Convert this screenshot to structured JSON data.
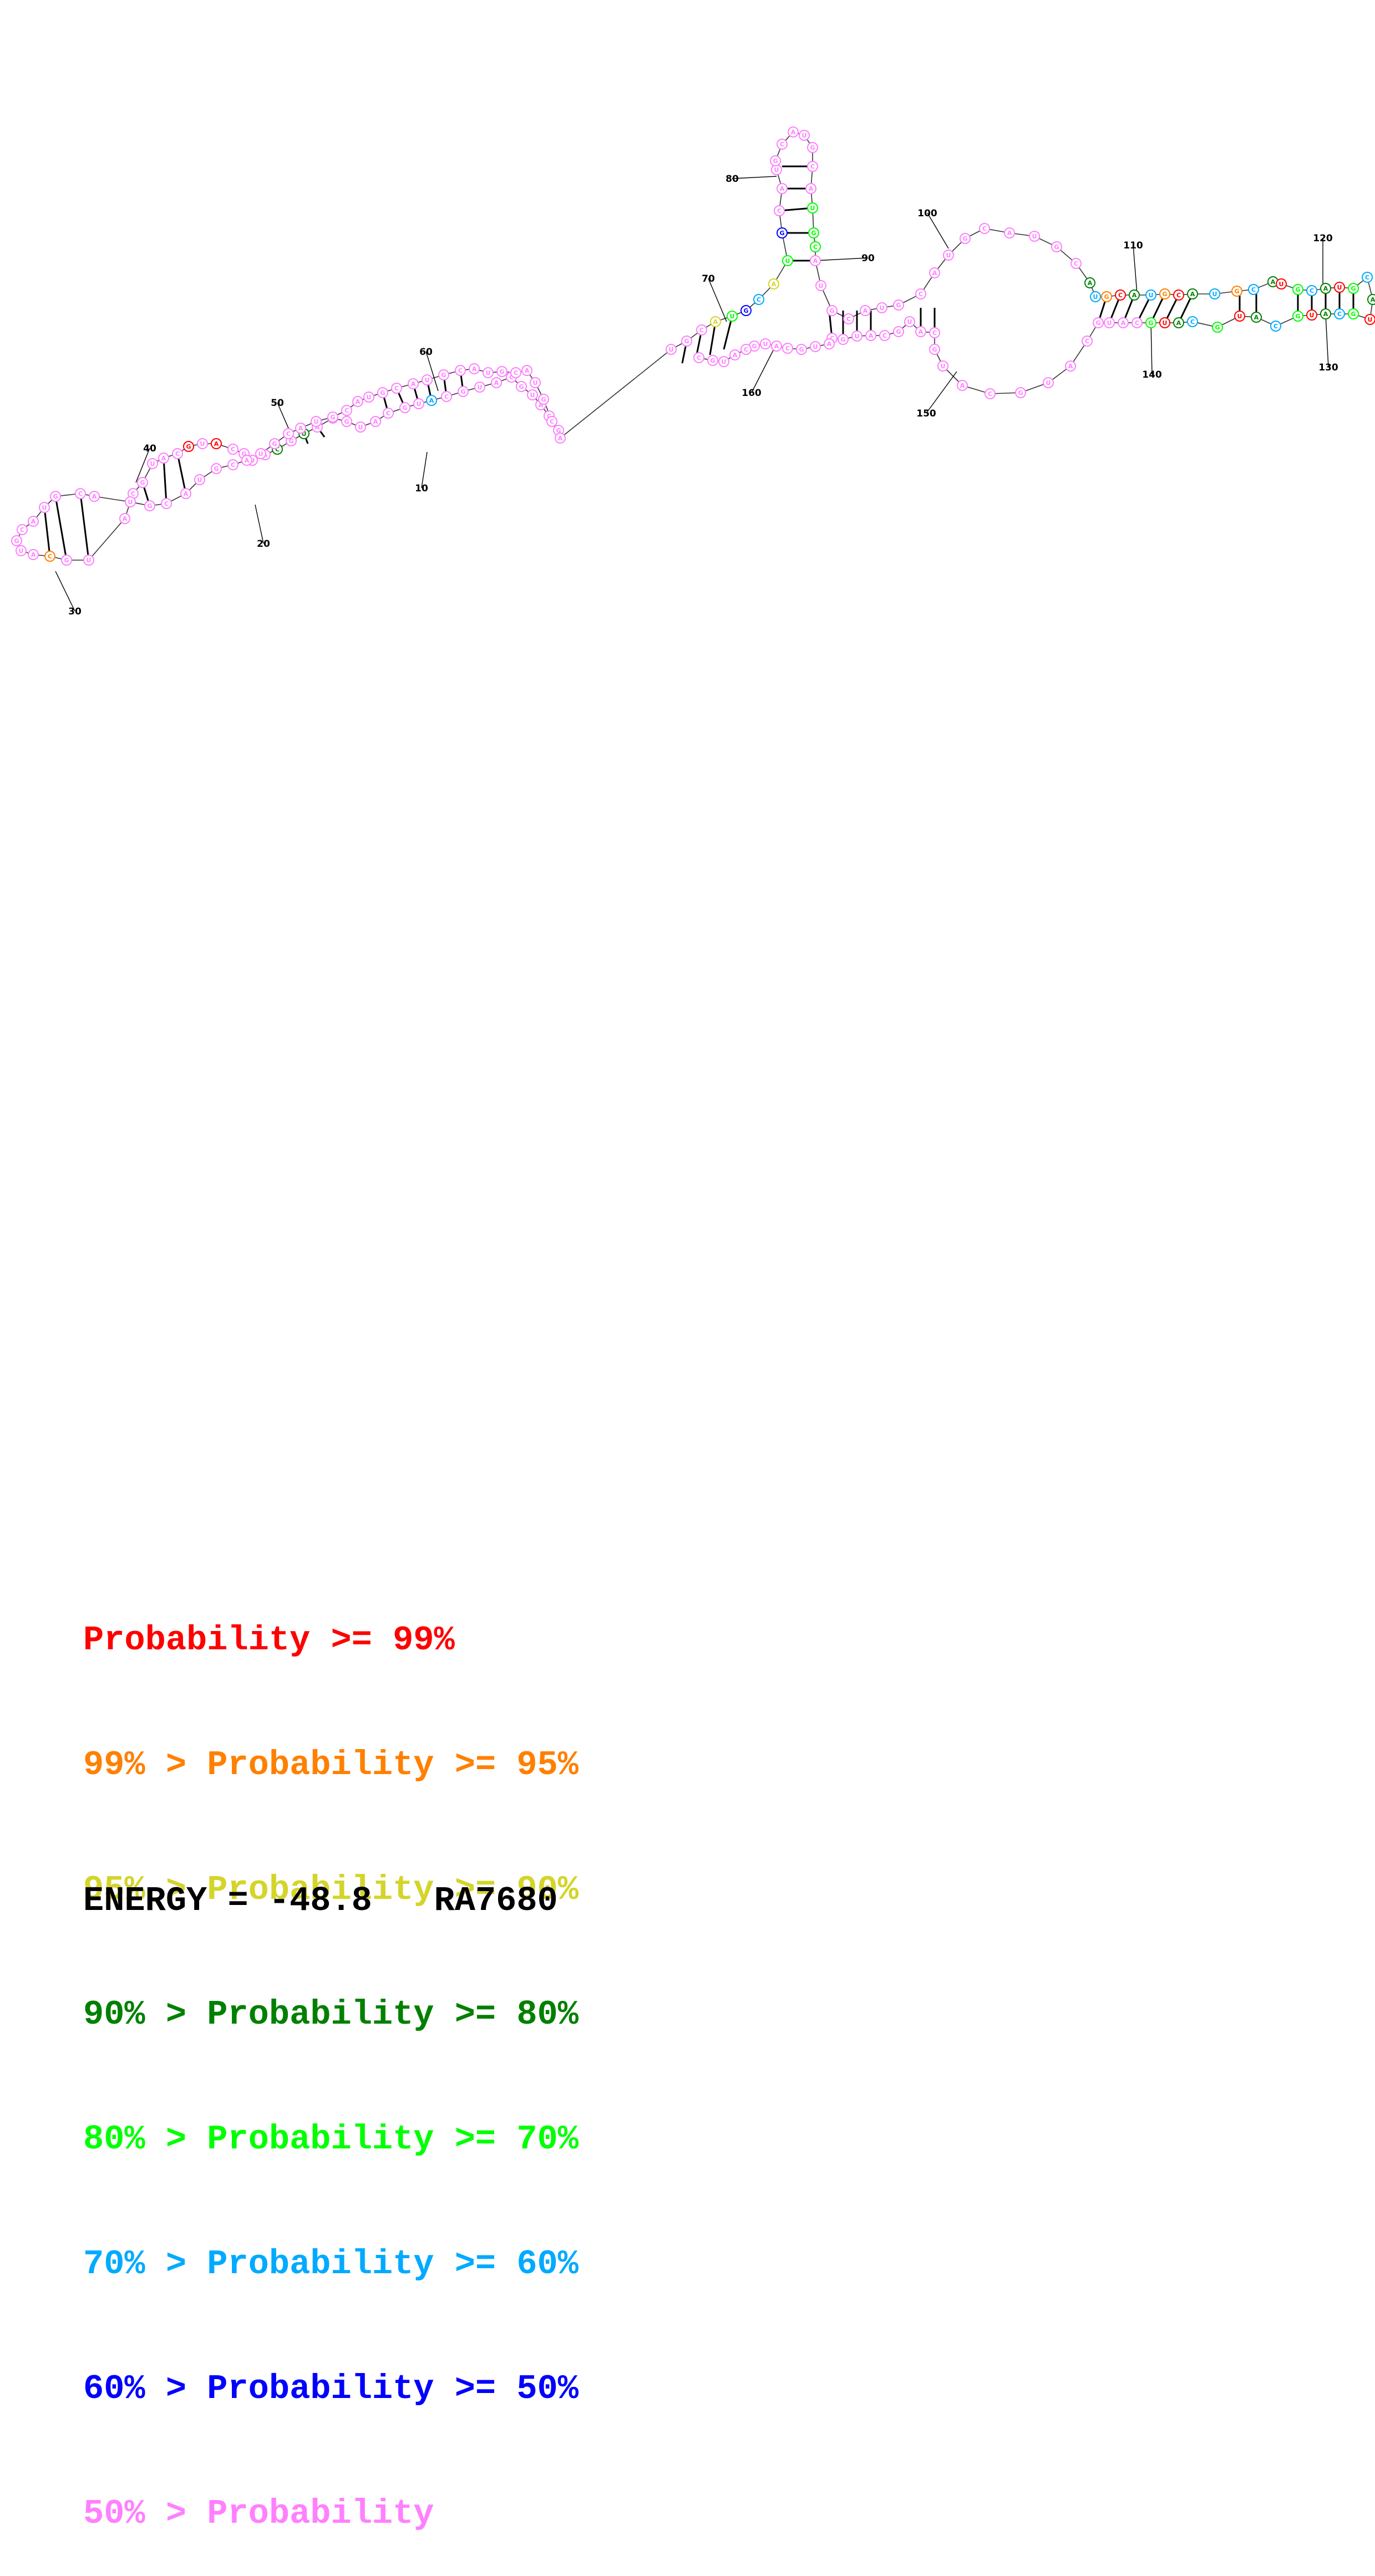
{
  "structure_id": "RA7680",
  "energy_label": "ENERGY = -48.8",
  "position_labels": [
    "10",
    "20",
    "30",
    "40",
    "50",
    "60",
    "70",
    "80",
    "90",
    "100",
    "110",
    "120",
    "130",
    "140",
    "150",
    "160"
  ],
  "nucleotide_letters": [
    "G",
    "C",
    "A",
    "U"
  ],
  "legend": [
    {
      "prefix": "",
      "label": "Probability >= 99%",
      "color": "#ff0000"
    },
    {
      "prefix": "99% > ",
      "label": "Probability >= 95%",
      "color": "#ff8000"
    },
    {
      "prefix": "95% > ",
      "label": "Probability >= 90%",
      "color": "#d4d42a"
    },
    {
      "prefix": "90% > ",
      "label": "Probability >= 80%",
      "color": "#008000"
    },
    {
      "prefix": "80% > ",
      "label": "Probability >= 70%",
      "color": "#00ff00"
    },
    {
      "prefix": "70% > ",
      "label": "Probability >= 60%",
      "color": "#00aaff"
    },
    {
      "prefix": "60% > ",
      "label": "Probability >= 50%",
      "color": "#0000ff"
    },
    {
      "prefix": "50% > ",
      "label": "Probability",
      "color": "#ff80ff"
    }
  ],
  "colors": {
    "p99": "#ff0000",
    "p95": "#ff8000",
    "p90": "#d4d42a",
    "p80": "#008000",
    "p70": "#00ff00",
    "p60": "#00aaff",
    "p50": "#0000ff",
    "plow": "#ff80ff"
  }
}
